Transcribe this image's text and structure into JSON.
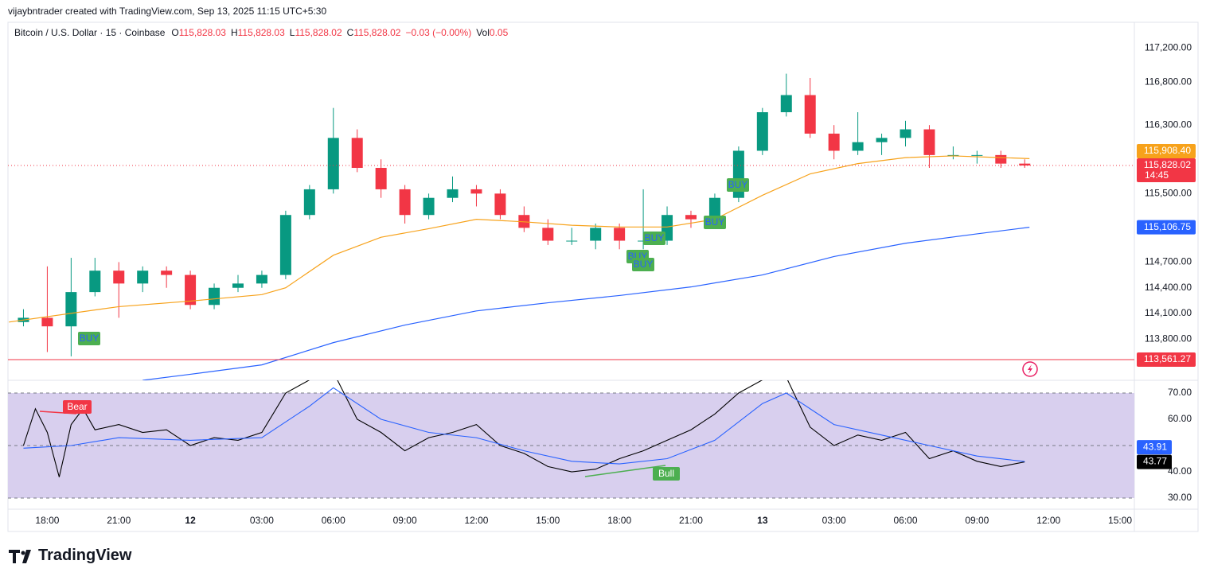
{
  "header": {
    "attribution": "vijaybntrader created with TradingView.com, Sep 13, 2025 11:15 UTC+5:30"
  },
  "footer": {
    "brand": "TradingView"
  },
  "chart_data": [
    {
      "type": "candlestick",
      "title": "Bitcoin / U.S. Dollar · 15 · Coinbase",
      "legend": [
        {
          "label": "O",
          "value": "115,828.03"
        },
        {
          "label": "H",
          "value": "115,828.03"
        },
        {
          "label": "L",
          "value": "115,828.02"
        },
        {
          "label": "C",
          "value": "115,828.02"
        },
        {
          "label": "",
          "value": "−0.03 (−0.00%)"
        },
        {
          "label": "Vol",
          "value": "0.05"
        }
      ],
      "up_color": "#089981",
      "down_color": "#f23645",
      "xlim": [
        16.35,
        63.6
      ],
      "ylim": [
        113320,
        117500
      ],
      "yticks": [
        {
          "value": 117200,
          "label": "117,200.00"
        },
        {
          "value": 116800,
          "label": "116,800.00"
        },
        {
          "value": 116300,
          "label": "116,300.00"
        },
        {
          "value": 115500,
          "label": "115,500.00"
        },
        {
          "value": 114700,
          "label": "114,700.00"
        },
        {
          "value": 114400,
          "label": "114,400.00"
        },
        {
          "value": 114100,
          "label": "114,100.00"
        },
        {
          "value": 113800,
          "label": "113,800.00"
        }
      ],
      "grid": true,
      "x": [
        17,
        18,
        19,
        20,
        21,
        22,
        23,
        24,
        25,
        26,
        27,
        28,
        29,
        30,
        31,
        32,
        33,
        34,
        35,
        36,
        37,
        38,
        39,
        40,
        41,
        42,
        43,
        44,
        45,
        46,
        47,
        48,
        49,
        50,
        51,
        52,
        53,
        54,
        55,
        56,
        57,
        58,
        59
      ],
      "open": [
        114000,
        114050,
        113950,
        114350,
        114600,
        114450,
        114600,
        114550,
        114200,
        114400,
        114450,
        114550,
        115250,
        115550,
        116150,
        115800,
        115550,
        115250,
        115450,
        115550,
        115500,
        115250,
        115100,
        114950,
        114950,
        115100,
        114950,
        114950,
        115250,
        115200,
        115450,
        116000,
        116450,
        116650,
        116200,
        116000,
        116100,
        116150,
        116250,
        115950,
        115950,
        115950,
        115850
      ],
      "high": [
        114150,
        114650,
        114750,
        114750,
        114700,
        114650,
        114650,
        114600,
        114450,
        114550,
        114600,
        115300,
        115600,
        116500,
        116250,
        115900,
        115600,
        115500,
        115700,
        115600,
        115550,
        115350,
        115200,
        115100,
        115150,
        115150,
        115550,
        115350,
        115300,
        115500,
        116050,
        116500,
        116900,
        116850,
        116300,
        116450,
        116200,
        116350,
        116300,
        116050,
        116000,
        116000,
        115900
      ],
      "low": [
        113950,
        113650,
        113600,
        114300,
        114050,
        114350,
        114400,
        114150,
        114150,
        114350,
        114400,
        114500,
        115200,
        115500,
        115750,
        115450,
        115150,
        115200,
        115400,
        115350,
        115200,
        115050,
        114900,
        114900,
        114850,
        114850,
        114850,
        114900,
        115100,
        115150,
        115400,
        115950,
        116400,
        116150,
        115900,
        115950,
        115950,
        116050,
        115800,
        115900,
        115850,
        115800,
        115800
      ],
      "close": [
        114050,
        113950,
        114350,
        114600,
        114450,
        114600,
        114550,
        114200,
        114400,
        114450,
        114550,
        115250,
        115550,
        116150,
        115800,
        115550,
        115250,
        115450,
        115550,
        115500,
        115250,
        115100,
        114950,
        114950,
        115100,
        114950,
        114950,
        115250,
        115200,
        115450,
        116000,
        116450,
        116650,
        116200,
        116000,
        116100,
        116150,
        116250,
        115950,
        115950,
        115950,
        115850,
        115828.02
      ],
      "overlays": [
        {
          "color": "#f7a21b",
          "x": [
            16.39,
            21,
            24,
            27,
            28,
            30,
            32,
            34,
            36,
            38,
            40,
            42,
            44,
            46,
            48,
            50,
            52,
            54,
            56,
            58,
            59.2
          ],
          "values": [
            114000,
            114180,
            114245,
            114320,
            114400,
            114780,
            114990,
            115090,
            115200,
            115170,
            115130,
            115110,
            115110,
            115200,
            115480,
            115730,
            115850,
            115920,
            115940,
            115920,
            115908.4
          ]
        },
        {
          "color": "#2962ff",
          "x": [
            22,
            24,
            27,
            30,
            33,
            36,
            39,
            42,
            45,
            48,
            51,
            54,
            57,
            59.2
          ],
          "values": [
            113320,
            113390,
            113500,
            113760,
            113965,
            114130,
            114225,
            114310,
            114410,
            114550,
            114765,
            114920,
            115030,
            115106.75
          ]
        }
      ],
      "price_labels": [
        {
          "value": 115908.4,
          "label": "115,908.40",
          "color": "#f7a21b"
        },
        {
          "value": 115828.02,
          "label": "115,828.02",
          "sub": "14:45",
          "color": "#f23645",
          "hline": "dotted"
        },
        {
          "value": 115106.75,
          "label": "115,106.75",
          "color": "#2962ff"
        },
        {
          "value": 113561.27,
          "label": "113,561.27",
          "color": "#f23645",
          "hline": "solid"
        }
      ],
      "annotations": [
        "BUY",
        "BUY",
        "BUY",
        "BUY",
        "BUY",
        "BUY"
      ]
    },
    {
      "type": "line",
      "xlim": [
        16.35,
        63.6
      ],
      "xticks": [
        {
          "value": 18,
          "label": "18:00"
        },
        {
          "value": 21,
          "label": "21:00"
        },
        {
          "value": 24,
          "label": "12"
        },
        {
          "value": 27,
          "label": "03:00"
        },
        {
          "value": 30,
          "label": "06:00"
        },
        {
          "value": 33,
          "label": "09:00"
        },
        {
          "value": 36,
          "label": "12:00"
        },
        {
          "value": 39,
          "label": "15:00"
        },
        {
          "value": 42,
          "label": "18:00"
        },
        {
          "value": 45,
          "label": "21:00"
        },
        {
          "value": 48,
          "label": "13"
        },
        {
          "value": 51,
          "label": "03:00"
        },
        {
          "value": 54,
          "label": "06:00"
        },
        {
          "value": 57,
          "label": "09:00"
        },
        {
          "value": 60,
          "label": "12:00"
        },
        {
          "value": 63,
          "label": "15:00"
        }
      ],
      "ylim": [
        25.76,
        74.85
      ],
      "yticks": [
        {
          "value": 70,
          "label": "70.00"
        },
        {
          "value": 60,
          "label": "60.00"
        },
        {
          "value": 40,
          "label": "40.00"
        },
        {
          "value": 30,
          "label": "30.00"
        }
      ],
      "band": [
        30,
        70
      ],
      "band_color": "#d8cfee",
      "midline": 50,
      "series": [
        {
          "color": "#000000",
          "x": [
            17,
            17.5,
            18,
            18.5,
            19,
            19.5,
            20,
            21,
            22,
            23,
            24,
            25,
            26,
            27,
            28,
            29,
            30,
            31,
            32,
            33,
            34,
            35,
            36,
            37,
            38,
            39,
            40,
            41,
            42,
            43,
            44,
            45,
            46,
            47,
            48,
            49,
            50,
            51,
            52,
            53,
            54,
            55,
            56,
            57,
            58,
            59
          ],
          "values": [
            50,
            64,
            55,
            38,
            58,
            64,
            56,
            58,
            55,
            56,
            50,
            53,
            52,
            55,
            70,
            75,
            78,
            60,
            55,
            48,
            53,
            55,
            58,
            50,
            47,
            42,
            40,
            41,
            45,
            48,
            52,
            56,
            62,
            70,
            75,
            76,
            57,
            50,
            54,
            52,
            55,
            45,
            48,
            44,
            42,
            43.77
          ]
        },
        {
          "color": "#2962ff",
          "x": [
            17,
            19,
            21,
            24,
            27,
            29,
            30,
            32,
            34,
            36,
            38,
            40,
            42,
            44,
            46,
            48,
            49,
            51,
            53,
            55,
            57,
            59
          ],
          "values": [
            49,
            50,
            53,
            52,
            53,
            65,
            72,
            60,
            55,
            53,
            48,
            44,
            43,
            45,
            52,
            66,
            70,
            58,
            54,
            50,
            46,
            43.91
          ]
        }
      ],
      "last_labels": [
        {
          "value": 43.91,
          "label": "43.91",
          "color": "#2962ff"
        },
        {
          "value": 43.77,
          "label": "43.77",
          "color": "#000000"
        }
      ],
      "annotations": [
        "Bear",
        "Bull"
      ]
    }
  ]
}
